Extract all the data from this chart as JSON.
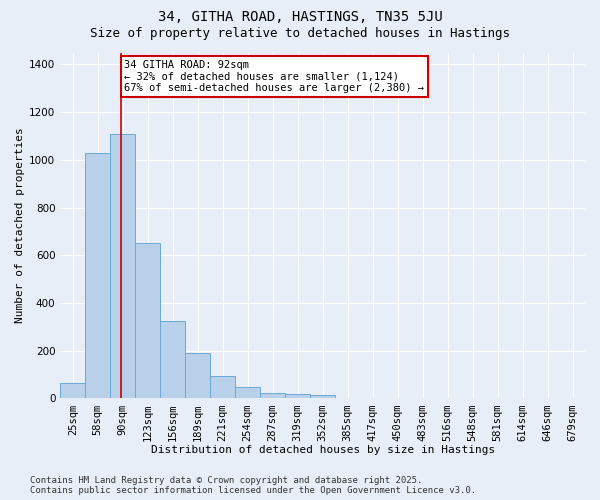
{
  "title": "34, GITHA ROAD, HASTINGS, TN35 5JU",
  "subtitle": "Size of property relative to detached houses in Hastings",
  "xlabel": "Distribution of detached houses by size in Hastings",
  "ylabel": "Number of detached properties",
  "footer_line1": "Contains HM Land Registry data © Crown copyright and database right 2025.",
  "footer_line2": "Contains public sector information licensed under the Open Government Licence v3.0.",
  "categories": [
    "25sqm",
    "58sqm",
    "90sqm",
    "123sqm",
    "156sqm",
    "189sqm",
    "221sqm",
    "254sqm",
    "287sqm",
    "319sqm",
    "352sqm",
    "385sqm",
    "417sqm",
    "450sqm",
    "483sqm",
    "516sqm",
    "548sqm",
    "581sqm",
    "614sqm",
    "646sqm",
    "679sqm"
  ],
  "values": [
    65,
    1030,
    1110,
    650,
    325,
    190,
    95,
    50,
    25,
    18,
    15,
    0,
    0,
    0,
    0,
    0,
    0,
    0,
    0,
    0,
    0
  ],
  "bar_color": "#b8d0ea",
  "bar_edge_color": "#6aaad4",
  "vline_color": "#cc0000",
  "vline_x_index": 2,
  "annotation_text_line1": "34 GITHA ROAD: 92sqm",
  "annotation_text_line2": "← 32% of detached houses are smaller (1,124)",
  "annotation_text_line3": "67% of semi-detached houses are larger (2,380) →",
  "annotation_box_color": "#cc0000",
  "ylim": [
    0,
    1450
  ],
  "yticks": [
    0,
    200,
    400,
    600,
    800,
    1000,
    1200,
    1400
  ],
  "background_color": "#e8eef8",
  "plot_background": "#e8eef8",
  "grid_color": "#ffffff",
  "title_fontsize": 10,
  "subtitle_fontsize": 9,
  "axis_label_fontsize": 8,
  "tick_fontsize": 7.5,
  "annotation_fontsize": 7.5,
  "footer_fontsize": 6.5
}
